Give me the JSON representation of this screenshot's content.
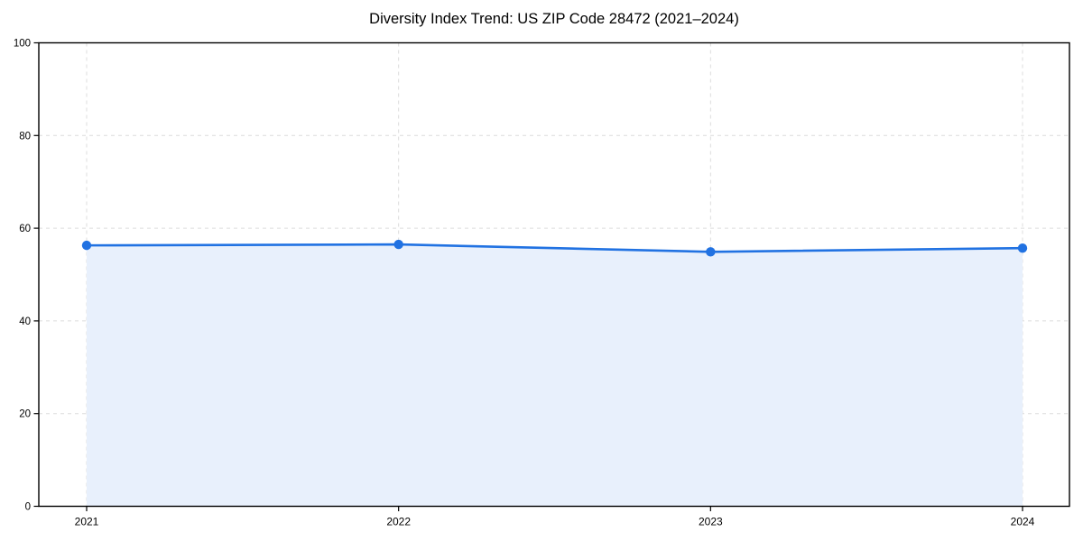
{
  "chart_data": {
    "type": "area",
    "title": "Diversity Index Trend: US ZIP Code 28472 (2021–2024)",
    "x": [
      "2021",
      "2022",
      "2023",
      "2024"
    ],
    "series": [
      {
        "name": "Diversity Index",
        "values": [
          56.3,
          56.5,
          54.9,
          55.7
        ]
      }
    ],
    "xlabel": "",
    "ylabel": "",
    "ylim": [
      0,
      100
    ],
    "yticks": [
      0,
      20,
      40,
      60,
      80,
      100
    ],
    "grid": true,
    "grid_style": "dashed",
    "legend_position": "none",
    "colors": {
      "line": "#2172e2",
      "marker": "#2172e2",
      "fill": "#e8f0fc",
      "grid": "#dcdcdc",
      "spine": "#000000",
      "text": "#000000",
      "background": "#ffffff"
    }
  }
}
